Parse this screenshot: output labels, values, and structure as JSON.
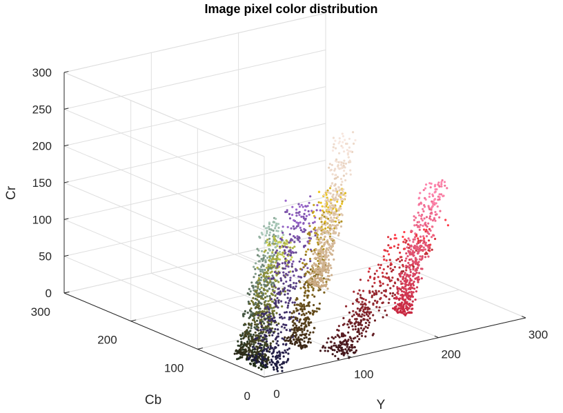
{
  "chart_data": {
    "type": "scatter3d",
    "title": "Image pixel color distribution",
    "xlabel": "Y",
    "ylabel": "Cb",
    "zlabel": "Cr",
    "xlim": [
      0,
      300
    ],
    "ylim": [
      0,
      300
    ],
    "zlim": [
      0,
      300
    ],
    "xticks": [
      "0",
      "100",
      "200",
      "300"
    ],
    "yticks": [
      "0",
      "100",
      "200",
      "300"
    ],
    "zticks": [
      "0",
      "50",
      "100",
      "150",
      "200",
      "250",
      "300"
    ],
    "grid": true,
    "clusters": [
      {
        "color_from": "#1e2a14",
        "color_to": "#a8c8b8",
        "Y": [
          5,
          40
        ],
        "Cb": [
          15,
          60
        ],
        "Cr": [
          0,
          195
        ]
      },
      {
        "color_from": "#2a2818",
        "color_to": "#c8d050",
        "Y": [
          10,
          60
        ],
        "Cb": [
          25,
          70
        ],
        "Cr": [
          0,
          165
        ]
      },
      {
        "color_from": "#1a1a3c",
        "color_to": "#9a66cc",
        "Y": [
          8,
          70
        ],
        "Cb": [
          0,
          50
        ],
        "Cr": [
          0,
          220
        ]
      },
      {
        "color_from": "#3c2818",
        "color_to": "#f0c828",
        "Y": [
          40,
          110
        ],
        "Cb": [
          10,
          40
        ],
        "Cr": [
          20,
          225
        ]
      },
      {
        "color_from": "#40181c",
        "color_to": "#ff3c48",
        "Y": [
          60,
          220
        ],
        "Cb": [
          0,
          30
        ],
        "Cr": [
          0,
          150
        ]
      },
      {
        "color_from": "#c82840",
        "color_to": "#ff88b0",
        "Y": [
          150,
          215
        ],
        "Cb": [
          0,
          20
        ],
        "Cr": [
          40,
          210
        ]
      },
      {
        "color_from": "#c8a880",
        "color_to": "#f8e8e0",
        "Y": [
          60,
          110
        ],
        "Cb": [
          0,
          25
        ],
        "Cr": [
          100,
          300
        ]
      }
    ]
  }
}
